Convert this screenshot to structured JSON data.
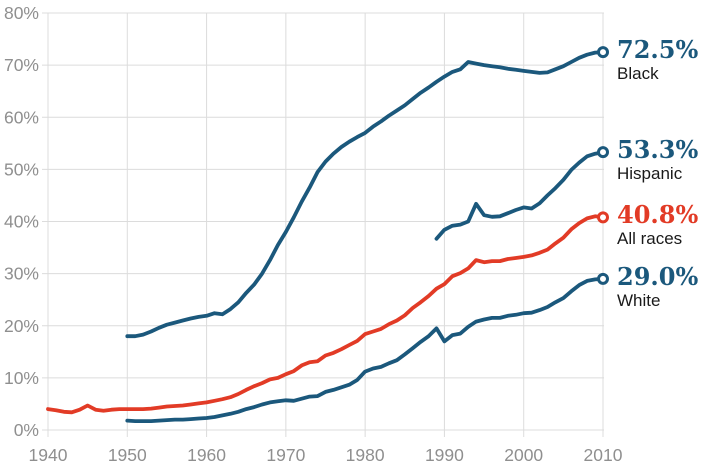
{
  "chart_data": {
    "type": "line",
    "title": "",
    "xlabel": "",
    "ylabel": "",
    "x_range": [
      1940,
      2010
    ],
    "y_range": [
      0,
      80
    ],
    "grid": true,
    "legend_position": "right",
    "x_ticks": [
      {
        "value": 1940,
        "label": "1940"
      },
      {
        "value": 1950,
        "label": "1950"
      },
      {
        "value": 1960,
        "label": "1960"
      },
      {
        "value": 1970,
        "label": "1970"
      },
      {
        "value": 1980,
        "label": "1980"
      },
      {
        "value": 1990,
        "label": "1990"
      },
      {
        "value": 2000,
        "label": "2000"
      },
      {
        "value": 2010,
        "label": "2010"
      }
    ],
    "y_ticks": [
      {
        "value": 0,
        "label": "0%"
      },
      {
        "value": 10,
        "label": "10%"
      },
      {
        "value": 20,
        "label": "20%"
      },
      {
        "value": 30,
        "label": "30%"
      },
      {
        "value": 40,
        "label": "40%"
      },
      {
        "value": 50,
        "label": "50%"
      },
      {
        "value": 60,
        "label": "60%"
      },
      {
        "value": 70,
        "label": "70%"
      },
      {
        "value": 80,
        "label": "80%"
      }
    ],
    "colors": {
      "teal": "#1B587C",
      "red": "#E23B26",
      "axis_text": "#8F8F8F",
      "grid": "#DCDCDC",
      "label_text": "#1A1A1A",
      "background": "#FFFFFF"
    },
    "series": [
      {
        "name": "Black",
        "end_label": "72.5%",
        "color": "#1B587C",
        "points": [
          [
            1950,
            18.0
          ],
          [
            1951,
            18.0
          ],
          [
            1952,
            18.3
          ],
          [
            1953,
            18.9
          ],
          [
            1954,
            19.6
          ],
          [
            1955,
            20.2
          ],
          [
            1956,
            20.6
          ],
          [
            1957,
            21.0
          ],
          [
            1958,
            21.4
          ],
          [
            1959,
            21.7
          ],
          [
            1960,
            21.9
          ],
          [
            1961,
            22.4
          ],
          [
            1962,
            22.2
          ],
          [
            1963,
            23.2
          ],
          [
            1964,
            24.5
          ],
          [
            1965,
            26.3
          ],
          [
            1966,
            27.9
          ],
          [
            1967,
            30.0
          ],
          [
            1968,
            32.6
          ],
          [
            1969,
            35.5
          ],
          [
            1970,
            38.0
          ],
          [
            1971,
            40.8
          ],
          [
            1972,
            43.8
          ],
          [
            1973,
            46.5
          ],
          [
            1974,
            49.5
          ],
          [
            1975,
            51.5
          ],
          [
            1976,
            53.0
          ],
          [
            1977,
            54.3
          ],
          [
            1978,
            55.3
          ],
          [
            1979,
            56.2
          ],
          [
            1980,
            57.0
          ],
          [
            1981,
            58.2
          ],
          [
            1982,
            59.2
          ],
          [
            1983,
            60.3
          ],
          [
            1984,
            61.3
          ],
          [
            1985,
            62.3
          ],
          [
            1986,
            63.5
          ],
          [
            1987,
            64.7
          ],
          [
            1988,
            65.7
          ],
          [
            1989,
            66.8
          ],
          [
            1990,
            67.8
          ],
          [
            1991,
            68.7
          ],
          [
            1992,
            69.2
          ],
          [
            1993,
            70.6
          ],
          [
            1994,
            70.3
          ],
          [
            1995,
            70.0
          ],
          [
            1996,
            69.8
          ],
          [
            1997,
            69.6
          ],
          [
            1998,
            69.3
          ],
          [
            1999,
            69.1
          ],
          [
            2000,
            68.9
          ],
          [
            2001,
            68.7
          ],
          [
            2002,
            68.5
          ],
          [
            2003,
            68.6
          ],
          [
            2004,
            69.2
          ],
          [
            2005,
            69.8
          ],
          [
            2006,
            70.6
          ],
          [
            2007,
            71.4
          ],
          [
            2008,
            72.0
          ],
          [
            2009,
            72.4
          ],
          [
            2010,
            72.5
          ]
        ]
      },
      {
        "name": "Hispanic",
        "end_label": "53.3%",
        "color": "#1B587C",
        "points": [
          [
            1989,
            36.7
          ],
          [
            1990,
            38.4
          ],
          [
            1991,
            39.2
          ],
          [
            1992,
            39.4
          ],
          [
            1993,
            40.0
          ],
          [
            1994,
            43.4
          ],
          [
            1995,
            41.2
          ],
          [
            1996,
            40.9
          ],
          [
            1997,
            41.0
          ],
          [
            1998,
            41.6
          ],
          [
            1999,
            42.2
          ],
          [
            2000,
            42.7
          ],
          [
            2001,
            42.5
          ],
          [
            2002,
            43.5
          ],
          [
            2003,
            45.0
          ],
          [
            2004,
            46.4
          ],
          [
            2005,
            48.0
          ],
          [
            2006,
            49.9
          ],
          [
            2007,
            51.3
          ],
          [
            2008,
            52.5
          ],
          [
            2009,
            53.0
          ],
          [
            2010,
            53.3
          ]
        ]
      },
      {
        "name": "All races",
        "end_label": "40.8%",
        "color": "#E23B26",
        "points": [
          [
            1940,
            4.0
          ],
          [
            1941,
            3.8
          ],
          [
            1942,
            3.5
          ],
          [
            1943,
            3.4
          ],
          [
            1944,
            3.9
          ],
          [
            1945,
            4.7
          ],
          [
            1946,
            3.9
          ],
          [
            1947,
            3.7
          ],
          [
            1948,
            3.9
          ],
          [
            1949,
            4.0
          ],
          [
            1950,
            4.0
          ],
          [
            1951,
            4.0
          ],
          [
            1952,
            4.0
          ],
          [
            1953,
            4.1
          ],
          [
            1954,
            4.3
          ],
          [
            1955,
            4.5
          ],
          [
            1956,
            4.6
          ],
          [
            1957,
            4.7
          ],
          [
            1958,
            4.9
          ],
          [
            1959,
            5.1
          ],
          [
            1960,
            5.3
          ],
          [
            1961,
            5.6
          ],
          [
            1962,
            5.9
          ],
          [
            1963,
            6.3
          ],
          [
            1964,
            6.9
          ],
          [
            1965,
            7.7
          ],
          [
            1966,
            8.4
          ],
          [
            1967,
            9.0
          ],
          [
            1968,
            9.7
          ],
          [
            1969,
            10.0
          ],
          [
            1970,
            10.7
          ],
          [
            1971,
            11.3
          ],
          [
            1972,
            12.4
          ],
          [
            1973,
            13.0
          ],
          [
            1974,
            13.2
          ],
          [
            1975,
            14.3
          ],
          [
            1976,
            14.8
          ],
          [
            1977,
            15.5
          ],
          [
            1978,
            16.3
          ],
          [
            1979,
            17.1
          ],
          [
            1980,
            18.4
          ],
          [
            1981,
            18.9
          ],
          [
            1982,
            19.4
          ],
          [
            1983,
            20.3
          ],
          [
            1984,
            21.0
          ],
          [
            1985,
            22.0
          ],
          [
            1986,
            23.4
          ],
          [
            1987,
            24.5
          ],
          [
            1988,
            25.7
          ],
          [
            1989,
            27.1
          ],
          [
            1990,
            28.0
          ],
          [
            1991,
            29.5
          ],
          [
            1992,
            30.1
          ],
          [
            1993,
            31.0
          ],
          [
            1994,
            32.6
          ],
          [
            1995,
            32.2
          ],
          [
            1996,
            32.4
          ],
          [
            1997,
            32.4
          ],
          [
            1998,
            32.8
          ],
          [
            1999,
            33.0
          ],
          [
            2000,
            33.2
          ],
          [
            2001,
            33.5
          ],
          [
            2002,
            34.0
          ],
          [
            2003,
            34.6
          ],
          [
            2004,
            35.8
          ],
          [
            2005,
            36.9
          ],
          [
            2006,
            38.5
          ],
          [
            2007,
            39.7
          ],
          [
            2008,
            40.6
          ],
          [
            2009,
            41.0
          ],
          [
            2010,
            40.8
          ]
        ]
      },
      {
        "name": "White",
        "end_label": "29.0%",
        "color": "#1B587C",
        "points": [
          [
            1950,
            1.8
          ],
          [
            1951,
            1.7
          ],
          [
            1952,
            1.7
          ],
          [
            1953,
            1.7
          ],
          [
            1954,
            1.8
          ],
          [
            1955,
            1.9
          ],
          [
            1956,
            2.0
          ],
          [
            1957,
            2.0
          ],
          [
            1958,
            2.1
          ],
          [
            1959,
            2.2
          ],
          [
            1960,
            2.3
          ],
          [
            1961,
            2.5
          ],
          [
            1962,
            2.8
          ],
          [
            1963,
            3.1
          ],
          [
            1964,
            3.5
          ],
          [
            1965,
            4.0
          ],
          [
            1966,
            4.4
          ],
          [
            1967,
            4.9
          ],
          [
            1968,
            5.3
          ],
          [
            1969,
            5.5
          ],
          [
            1970,
            5.7
          ],
          [
            1971,
            5.6
          ],
          [
            1972,
            6.0
          ],
          [
            1973,
            6.4
          ],
          [
            1974,
            6.5
          ],
          [
            1975,
            7.3
          ],
          [
            1976,
            7.7
          ],
          [
            1977,
            8.2
          ],
          [
            1978,
            8.7
          ],
          [
            1979,
            9.6
          ],
          [
            1980,
            11.2
          ],
          [
            1981,
            11.8
          ],
          [
            1982,
            12.1
          ],
          [
            1983,
            12.8
          ],
          [
            1984,
            13.4
          ],
          [
            1985,
            14.5
          ],
          [
            1986,
            15.7
          ],
          [
            1987,
            16.9
          ],
          [
            1988,
            18.0
          ],
          [
            1989,
            19.5
          ],
          [
            1990,
            17.0
          ],
          [
            1991,
            18.2
          ],
          [
            1992,
            18.5
          ],
          [
            1993,
            19.8
          ],
          [
            1994,
            20.8
          ],
          [
            1995,
            21.2
          ],
          [
            1996,
            21.5
          ],
          [
            1997,
            21.5
          ],
          [
            1998,
            21.9
          ],
          [
            1999,
            22.1
          ],
          [
            2000,
            22.4
          ],
          [
            2001,
            22.5
          ],
          [
            2002,
            23.0
          ],
          [
            2003,
            23.6
          ],
          [
            2004,
            24.5
          ],
          [
            2005,
            25.3
          ],
          [
            2006,
            26.6
          ],
          [
            2007,
            27.8
          ],
          [
            2008,
            28.6
          ],
          [
            2009,
            28.9
          ],
          [
            2010,
            29.0
          ]
        ]
      }
    ]
  }
}
